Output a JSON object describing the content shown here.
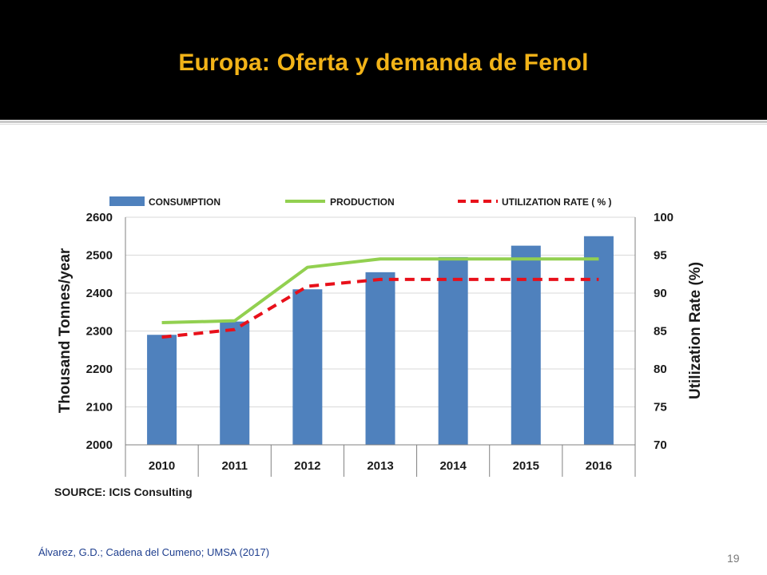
{
  "slide": {
    "title": "Europa: Oferta y demanda de Fenol",
    "citation": "Álvarez, G.D.; Cadena del Cumeno; UMSA (2017)",
    "slide_number": "19",
    "colors": {
      "header_background": "#000000",
      "title": "#f2b318",
      "citation": "#1f3f8f"
    }
  },
  "chart_data": {
    "type": "bar",
    "categories": [
      "2010",
      "2011",
      "2012",
      "2013",
      "2014",
      "2015",
      "2016"
    ],
    "series": [
      {
        "name": "CONSUMPTION",
        "type": "bar",
        "axis": "left",
        "color": "#4f81bd",
        "values": [
          2290,
          2325,
          2410,
          2455,
          2495,
          2525,
          2550
        ]
      },
      {
        "name": "PRODUCTION",
        "type": "line",
        "axis": "left",
        "color": "#92d050",
        "values": [
          2322,
          2327,
          2468,
          2490,
          2490,
          2490,
          2490
        ]
      },
      {
        "name": "UTILIZATION RATE ( % )",
        "type": "line",
        "style": "dashed",
        "axis": "right",
        "color": "#e8101a",
        "values": [
          84.2,
          85.2,
          90.9,
          91.8,
          91.8,
          91.8,
          91.8
        ]
      }
    ],
    "y_left": {
      "label": "Thousand Tonnes/year",
      "range": [
        2000,
        2600
      ],
      "ticks": [
        "2000",
        "2100",
        "2200",
        "2300",
        "2400",
        "2500",
        "2600"
      ]
    },
    "y_right": {
      "label": "Utilization Rate (%)",
      "range": [
        70,
        100
      ],
      "ticks": [
        "70",
        "75",
        "80",
        "85",
        "90",
        "95",
        "100"
      ]
    },
    "grid": "horizontal",
    "legend_position": "top",
    "source": "SOURCE: ICIS Consulting"
  }
}
